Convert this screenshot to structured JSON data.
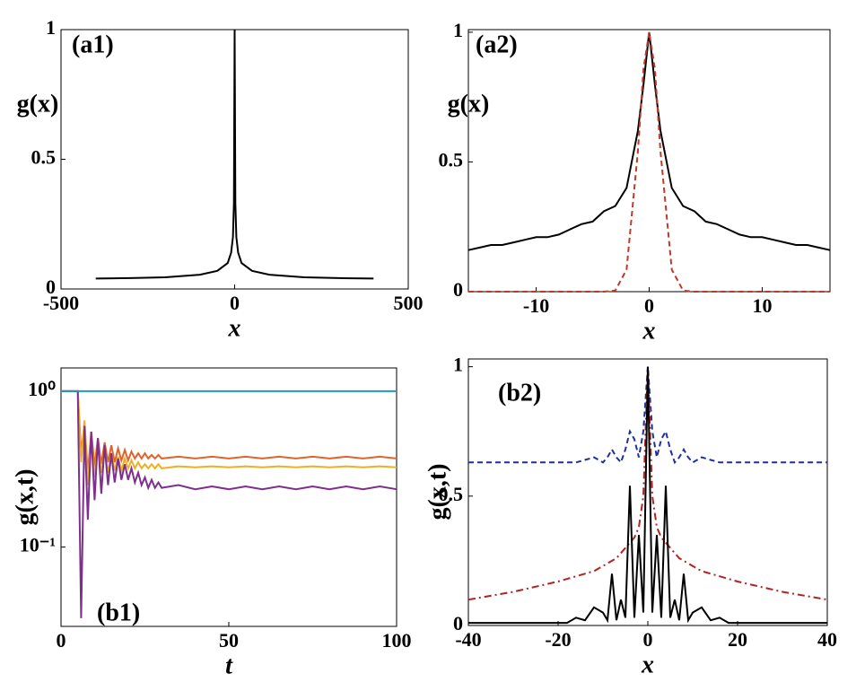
{
  "chart_data": [
    {
      "type": "line",
      "annotation": "(a1)",
      "ylabel": "g(x)",
      "xlabel": "x",
      "xlim": [
        -500,
        500
      ],
      "xticks": [
        -500,
        0,
        500
      ],
      "ylim": [
        0,
        1
      ],
      "yticks": [
        0,
        0.5,
        1
      ],
      "x": [
        -400,
        -300,
        -200,
        -100,
        -50,
        -20,
        -10,
        -5,
        -2,
        0,
        2,
        5,
        10,
        20,
        50,
        100,
        200,
        300,
        400
      ],
      "series": [
        {
          "color": "#000000",
          "style": "solid",
          "values": [
            0.04,
            0.042,
            0.045,
            0.055,
            0.07,
            0.1,
            0.14,
            0.2,
            0.33,
            1,
            0.33,
            0.2,
            0.14,
            0.1,
            0.07,
            0.055,
            0.045,
            0.042,
            0.04
          ]
        }
      ]
    },
    {
      "type": "line",
      "annotation": "(a2)",
      "ylabel": "g(x)",
      "xlabel": "x",
      "xlim": [
        -16,
        16
      ],
      "xticks": [
        -10,
        0,
        10
      ],
      "ylim": [
        0,
        1.01
      ],
      "yticks": [
        0,
        0.5,
        1
      ],
      "x": [
        -16,
        -15,
        -14,
        -13,
        -12,
        -11,
        -10,
        -9,
        -8,
        -7,
        -6,
        -5,
        -4,
        -3,
        -2,
        -1,
        -0.5,
        0,
        0.5,
        1,
        2,
        3,
        4,
        5,
        6,
        7,
        8,
        9,
        10,
        11,
        12,
        13,
        14,
        15,
        16
      ],
      "series": [
        {
          "color": "#000000",
          "style": "solid",
          "values": [
            0.16,
            0.17,
            0.18,
            0.18,
            0.19,
            0.2,
            0.21,
            0.21,
            0.22,
            0.24,
            0.26,
            0.27,
            0.31,
            0.33,
            0.4,
            0.62,
            0.8,
            1,
            0.8,
            0.62,
            0.4,
            0.33,
            0.31,
            0.27,
            0.26,
            0.24,
            0.22,
            0.21,
            0.21,
            0.2,
            0.19,
            0.18,
            0.18,
            0.17,
            0.16
          ]
        },
        {
          "color": "#c0392b",
          "style": "dashed",
          "values": [
            0,
            0,
            0,
            0,
            0,
            0,
            0,
            0,
            0,
            0,
            0,
            0,
            0,
            0.004,
            0.085,
            0.54,
            0.86,
            1,
            0.86,
            0.54,
            0.085,
            0.004,
            0,
            0,
            0,
            0,
            0,
            0,
            0,
            0,
            0,
            0,
            0,
            0,
            0
          ]
        }
      ]
    },
    {
      "type": "line",
      "annotation": "(b1)",
      "ylabel": "g(x,t)",
      "xlabel": "t",
      "log_y": true,
      "xlim": [
        0,
        100
      ],
      "xticks": [
        0,
        50,
        100
      ],
      "ylim": [
        0.031,
        1.41
      ],
      "yticks": [
        {
          "value": 1,
          "label": "10⁰"
        },
        {
          "value": 0.1,
          "label": "10⁻¹"
        }
      ],
      "x": [
        0,
        5,
        6,
        7,
        8,
        9,
        10,
        11,
        12,
        13,
        14,
        15,
        16,
        17,
        18,
        19,
        20,
        21,
        22,
        23,
        24,
        25,
        26,
        27,
        28,
        29,
        30,
        35,
        40,
        45,
        50,
        55,
        60,
        65,
        70,
        75,
        80,
        85,
        90,
        95,
        100
      ],
      "series": [
        {
          "color": "#e0642a",
          "style": "solid",
          "values": [
            1,
            1,
            0.4,
            0.62,
            0.3,
            0.55,
            0.33,
            0.5,
            0.34,
            0.47,
            0.35,
            0.45,
            0.35,
            0.43,
            0.36,
            0.42,
            0.36,
            0.41,
            0.37,
            0.4,
            0.37,
            0.4,
            0.37,
            0.39,
            0.37,
            0.39,
            0.37,
            0.38,
            0.37,
            0.38,
            0.37,
            0.38,
            0.37,
            0.38,
            0.37,
            0.38,
            0.37,
            0.38,
            0.37,
            0.38,
            0.37
          ]
        },
        {
          "color": "#edb120",
          "style": "solid",
          "values": [
            1,
            1,
            0.35,
            0.65,
            0.25,
            0.5,
            0.28,
            0.45,
            0.3,
            0.42,
            0.3,
            0.4,
            0.31,
            0.38,
            0.31,
            0.37,
            0.32,
            0.36,
            0.32,
            0.35,
            0.32,
            0.34,
            0.32,
            0.34,
            0.32,
            0.34,
            0.32,
            0.33,
            0.325,
            0.33,
            0.325,
            0.33,
            0.325,
            0.33,
            0.325,
            0.33,
            0.325,
            0.33,
            0.325,
            0.33,
            0.325
          ]
        },
        {
          "color": "#7e2f8e",
          "style": "solid",
          "values": [
            1,
            1,
            0.035,
            0.6,
            0.15,
            0.55,
            0.2,
            0.5,
            0.22,
            0.45,
            0.25,
            0.4,
            0.26,
            0.37,
            0.27,
            0.34,
            0.27,
            0.32,
            0.26,
            0.3,
            0.25,
            0.28,
            0.24,
            0.27,
            0.24,
            0.26,
            0.24,
            0.25,
            0.235,
            0.245,
            0.235,
            0.245,
            0.235,
            0.245,
            0.235,
            0.245,
            0.235,
            0.245,
            0.235,
            0.245,
            0.235
          ]
        },
        {
          "color": "#1a9bc4",
          "style": "solid",
          "values": [
            1,
            1,
            1,
            1,
            1,
            1,
            1,
            1,
            1,
            1,
            1,
            1,
            1,
            1,
            1,
            1,
            1,
            1,
            1,
            1,
            1,
            1,
            1,
            1,
            1,
            1,
            1,
            1,
            1,
            1,
            1,
            1,
            1,
            1,
            1,
            1,
            1,
            1,
            1,
            1,
            1
          ]
        }
      ]
    },
    {
      "type": "line",
      "annotation": "(b2)",
      "ylabel": "g(x,t)",
      "xlabel": "x",
      "xlim": [
        -40,
        40
      ],
      "xticks": [
        -40,
        -20,
        0,
        20,
        40
      ],
      "ylim": [
        0,
        1.03
      ],
      "yticks": [
        0,
        0.5,
        1
      ],
      "x": [
        -40,
        -30,
        -20,
        -18,
        -16,
        -14,
        -12,
        -10,
        -9,
        -8,
        -7,
        -6,
        -5,
        -4,
        -3,
        -2,
        -1,
        0,
        1,
        2,
        3,
        4,
        5,
        6,
        7,
        8,
        9,
        10,
        12,
        14,
        16,
        18,
        20,
        30,
        40
      ],
      "series": [
        {
          "color": "#1f2fa0",
          "style": "dashed",
          "values": [
            0.63,
            0.63,
            0.63,
            0.63,
            0.63,
            0.64,
            0.65,
            0.63,
            0.65,
            0.68,
            0.65,
            0.63,
            0.68,
            0.75,
            0.72,
            0.65,
            0.75,
            1,
            0.75,
            0.65,
            0.72,
            0.75,
            0.68,
            0.63,
            0.65,
            0.68,
            0.65,
            0.63,
            0.65,
            0.64,
            0.63,
            0.63,
            0.63,
            0.63,
            0.63
          ]
        },
        {
          "color": "#b22222",
          "style": "dashdot",
          "values": [
            0.1,
            0.13,
            0.17,
            0.18,
            0.19,
            0.2,
            0.21,
            0.23,
            0.24,
            0.25,
            0.26,
            0.28,
            0.3,
            0.32,
            0.34,
            0.38,
            0.5,
            1,
            0.5,
            0.38,
            0.34,
            0.32,
            0.3,
            0.28,
            0.26,
            0.25,
            0.24,
            0.23,
            0.21,
            0.2,
            0.19,
            0.18,
            0.17,
            0.13,
            0.1
          ]
        },
        {
          "color": "#000000",
          "style": "solid",
          "values": [
            0.01,
            0.01,
            0.01,
            0.01,
            0.03,
            0.02,
            0.07,
            0.05,
            0.02,
            0.2,
            0.02,
            0.1,
            0.03,
            0.54,
            0.03,
            0.35,
            0.05,
            1,
            0.05,
            0.35,
            0.03,
            0.54,
            0.03,
            0.1,
            0.02,
            0.2,
            0.02,
            0.05,
            0.07,
            0.02,
            0.03,
            0.01,
            0.01,
            0.01,
            0.01
          ]
        }
      ]
    }
  ]
}
